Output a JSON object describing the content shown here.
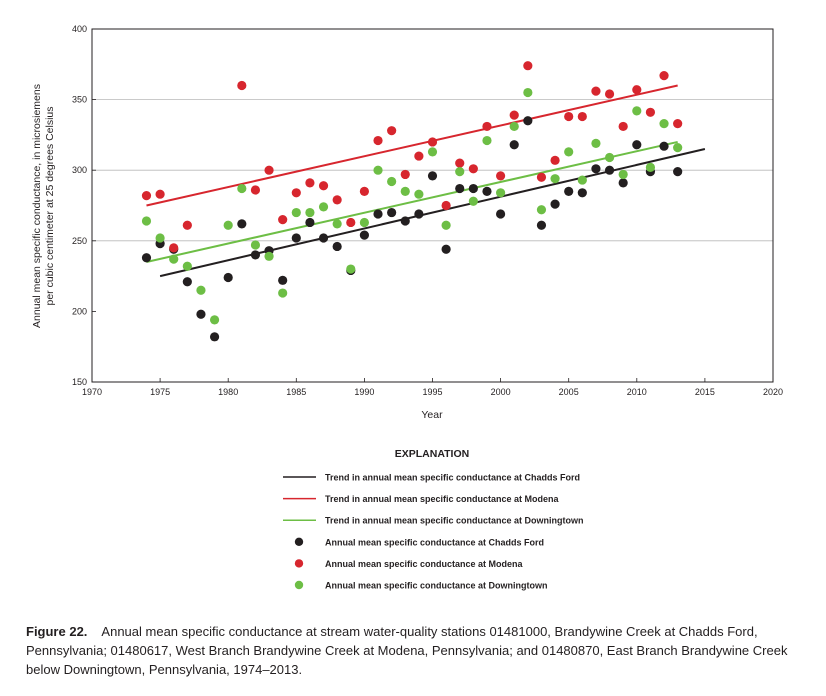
{
  "chart_data": {
    "type": "scatter",
    "xlabel": "Year",
    "ylabel_line1": "Annual mean specific conductance, in microsiemens",
    "ylabel_line2": "per cubic centimeter at 25 degrees Celsius",
    "xlim": [
      1970,
      2020
    ],
    "ylim": [
      150,
      400
    ],
    "xticks": [
      1970,
      1975,
      1980,
      1985,
      1990,
      1995,
      2000,
      2005,
      2010,
      2015,
      2020
    ],
    "yticks": [
      150,
      200,
      250,
      300,
      350,
      400
    ],
    "gridlines_y": [
      250,
      300,
      350
    ],
    "series": [
      {
        "key": "chadds",
        "color": "#231f20",
        "trend": {
          "x": [
            1975,
            2015
          ],
          "y": [
            225,
            315
          ]
        },
        "points": [
          [
            1974,
            238
          ],
          [
            1975,
            248
          ],
          [
            1976,
            244
          ],
          [
            1977,
            221
          ],
          [
            1978,
            198
          ],
          [
            1979,
            182
          ],
          [
            1980,
            224
          ],
          [
            1981,
            262
          ],
          [
            1982,
            240
          ],
          [
            1983,
            243
          ],
          [
            1984,
            222
          ],
          [
            1985,
            252
          ],
          [
            1986,
            263
          ],
          [
            1987,
            252
          ],
          [
            1988,
            246
          ],
          [
            1989,
            229
          ],
          [
            1990,
            254
          ],
          [
            1991,
            269
          ],
          [
            1992,
            270
          ],
          [
            1993,
            264
          ],
          [
            1994,
            269
          ],
          [
            1995,
            296
          ],
          [
            1996,
            244
          ],
          [
            1997,
            287
          ],
          [
            1998,
            287
          ],
          [
            1999,
            285
          ],
          [
            2000,
            269
          ],
          [
            2001,
            318
          ],
          [
            2002,
            335
          ],
          [
            2003,
            261
          ],
          [
            2004,
            276
          ],
          [
            2005,
            285
          ],
          [
            2006,
            284
          ],
          [
            2007,
            301
          ],
          [
            2008,
            300
          ],
          [
            2009,
            291
          ],
          [
            2010,
            318
          ],
          [
            2011,
            299
          ],
          [
            2012,
            317
          ],
          [
            2013,
            299
          ]
        ]
      },
      {
        "key": "modena",
        "color": "#d7262e",
        "trend": {
          "x": [
            1974,
            2013
          ],
          "y": [
            275,
            360
          ]
        },
        "points": [
          [
            1974,
            282
          ],
          [
            1975,
            283
          ],
          [
            1976,
            245
          ],
          [
            1977,
            261
          ],
          [
            1981,
            360
          ],
          [
            1982,
            286
          ],
          [
            1983,
            300
          ],
          [
            1984,
            265
          ],
          [
            1985,
            284
          ],
          [
            1986,
            291
          ],
          [
            1987,
            289
          ],
          [
            1988,
            279
          ],
          [
            1989,
            263
          ],
          [
            1990,
            285
          ],
          [
            1991,
            321
          ],
          [
            1992,
            328
          ],
          [
            1993,
            297
          ],
          [
            1994,
            310
          ],
          [
            1995,
            320
          ],
          [
            1996,
            275
          ],
          [
            1997,
            305
          ],
          [
            1998,
            301
          ],
          [
            1999,
            331
          ],
          [
            2000,
            296
          ],
          [
            2001,
            339
          ],
          [
            2002,
            374
          ],
          [
            2003,
            295
          ],
          [
            2004,
            307
          ],
          [
            2005,
            338
          ],
          [
            2006,
            338
          ],
          [
            2007,
            356
          ],
          [
            2008,
            354
          ],
          [
            2009,
            331
          ],
          [
            2010,
            357
          ],
          [
            2011,
            341
          ],
          [
            2012,
            367
          ],
          [
            2013,
            333
          ]
        ]
      },
      {
        "key": "downingtown",
        "color": "#6dbe45",
        "trend": {
          "x": [
            1974,
            2013
          ],
          "y": [
            235,
            320
          ]
        },
        "points": [
          [
            1974,
            264
          ],
          [
            1975,
            252
          ],
          [
            1976,
            237
          ],
          [
            1977,
            232
          ],
          [
            1978,
            215
          ],
          [
            1979,
            194
          ],
          [
            1980,
            261
          ],
          [
            1981,
            287
          ],
          [
            1982,
            247
          ],
          [
            1983,
            239
          ],
          [
            1984,
            213
          ],
          [
            1985,
            270
          ],
          [
            1986,
            270
          ],
          [
            1987,
            274
          ],
          [
            1988,
            262
          ],
          [
            1989,
            230
          ],
          [
            1990,
            263
          ],
          [
            1991,
            300
          ],
          [
            1992,
            292
          ],
          [
            1993,
            285
          ],
          [
            1994,
            283
          ],
          [
            1995,
            313
          ],
          [
            1996,
            261
          ],
          [
            1997,
            299
          ],
          [
            1998,
            278
          ],
          [
            1999,
            321
          ],
          [
            2000,
            284
          ],
          [
            2001,
            331
          ],
          [
            2002,
            355
          ],
          [
            2003,
            272
          ],
          [
            2004,
            294
          ],
          [
            2005,
            313
          ],
          [
            2006,
            293
          ],
          [
            2007,
            319
          ],
          [
            2008,
            309
          ],
          [
            2009,
            297
          ],
          [
            2010,
            342
          ],
          [
            2011,
            302
          ],
          [
            2012,
            333
          ],
          [
            2013,
            316
          ]
        ]
      }
    ],
    "legend": {
      "title": "EXPLANATION",
      "entries": [
        {
          "kind": "line",
          "series": "chadds",
          "label": "Trend in annual mean specific conductance at Chadds Ford"
        },
        {
          "kind": "line",
          "series": "modena",
          "label": "Trend in annual mean specific conductance at Modena"
        },
        {
          "kind": "line",
          "series": "downingtown",
          "label": "Trend in annual mean specific conductance at Downingtown"
        },
        {
          "kind": "dot",
          "series": "chadds",
          "label": "Annual mean specific conductance at Chadds Ford"
        },
        {
          "kind": "dot",
          "series": "modena",
          "label": "Annual mean specific conductance at Modena"
        },
        {
          "kind": "dot",
          "series": "downingtown",
          "label": "Annual mean specific conductance at Downingtown"
        }
      ]
    }
  },
  "caption": {
    "figure_number": "Figure 22.",
    "text": "Annual mean specific conductance at stream water-quality stations 01481000, Brandywine Creek at Chadds Ford, Pennsylvania; 01480617, West Branch Brandywine Creek at Modena, Pennsylvania; and 01480870, East Branch Brandywine Creek below Downingtown, Pennsylvania, 1974–2013."
  }
}
